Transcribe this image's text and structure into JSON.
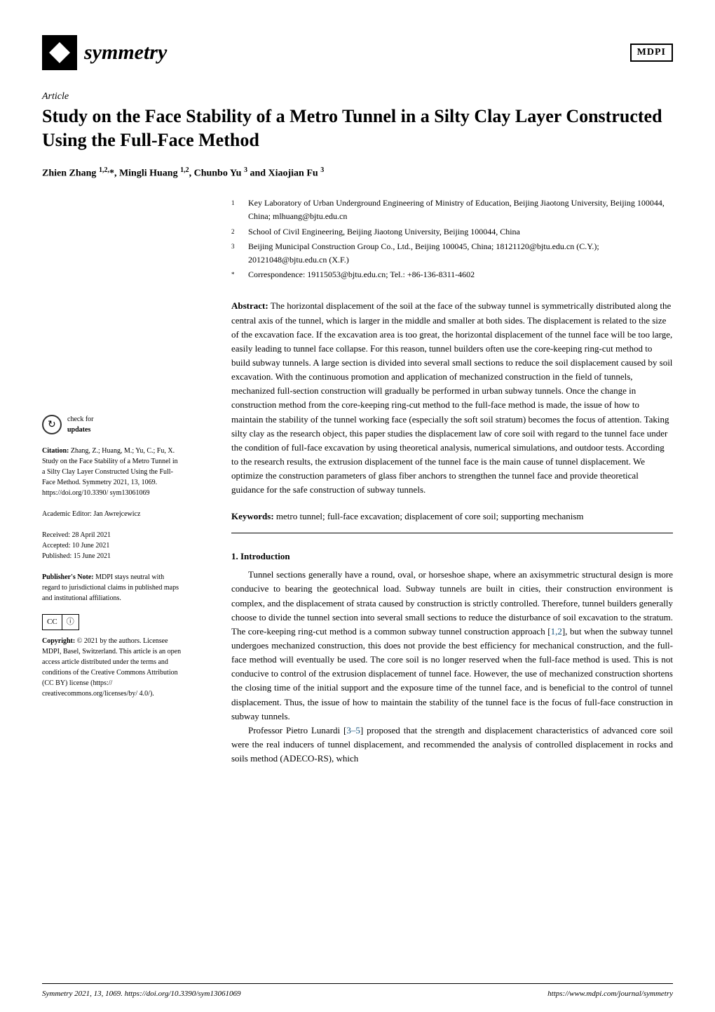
{
  "header": {
    "journal_name": "symmetry",
    "publisher_logo": "MDPI"
  },
  "article_type": "Article",
  "title": "Study on the Face Stability of a Metro Tunnel in a Silty Clay Layer Constructed Using the Full-Face Method",
  "authors": "Zhien Zhang 1,2,*, Mingli Huang 1,2, Chunbo Yu 3 and Xiaojian Fu 3",
  "affiliations": [
    {
      "num": "1",
      "text": "Key Laboratory of Urban Underground Engineering of Ministry of Education, Beijing Jiaotong University, Beijing 100044, China; mlhuang@bjtu.edu.cn"
    },
    {
      "num": "2",
      "text": "School of Civil Engineering, Beijing Jiaotong University, Beijing 100044, China"
    },
    {
      "num": "3",
      "text": "Beijing Municipal Construction Group Co., Ltd., Beijing 100045, China; 18121120@bjtu.edu.cn (C.Y.); 20121048@bjtu.edu.cn (X.F.)"
    },
    {
      "num": "*",
      "text": "Correspondence: 19115053@bjtu.edu.cn; Tel.: +86-136-8311-4602"
    }
  ],
  "abstract": {
    "label": "Abstract:",
    "text": "The horizontal displacement of the soil at the face of the subway tunnel is symmetrically distributed along the central axis of the tunnel, which is larger in the middle and smaller at both sides. The displacement is related to the size of the excavation face. If the excavation area is too great, the horizontal displacement of the tunnel face will be too large, easily leading to tunnel face collapse. For this reason, tunnel builders often use the core-keeping ring-cut method to build subway tunnels. A large section is divided into several small sections to reduce the soil displacement caused by soil excavation. With the continuous promotion and application of mechanized construction in the field of tunnels, mechanized full-section construction will gradually be performed in urban subway tunnels. Once the change in construction method from the core-keeping ring-cut method to the full-face method is made, the issue of how to maintain the stability of the tunnel working face (especially the soft soil stratum) becomes the focus of attention. Taking silty clay as the research object, this paper studies the displacement law of core soil with regard to the tunnel face under the condition of full-face excavation by using theoretical analysis, numerical simulations, and outdoor tests. According to the research results, the extrusion displacement of the tunnel face is the main cause of tunnel displacement. We optimize the construction parameters of glass fiber anchors to strengthen the tunnel face and provide theoretical guidance for the safe construction of subway tunnels."
  },
  "keywords": {
    "label": "Keywords:",
    "text": "metro tunnel; full-face excavation; displacement of core soil; supporting mechanism"
  },
  "section1": {
    "heading": "1. Introduction",
    "para1a": "Tunnel sections generally have a round, oval, or horseshoe shape, where an axisymmetric structural design is more conducive to bearing the geotechnical load. Subway tunnels are built in cities, their construction environment is complex, and the displacement of strata caused by construction is strictly controlled. Therefore, tunnel builders generally choose to divide the tunnel section into several small sections to reduce the disturbance of soil excavation to the stratum. The core-keeping ring-cut method is a common subway tunnel construction approach [",
    "ref12": "1,2",
    "para1b": "], but when the subway tunnel undergoes mechanized construction, this does not provide the best efficiency for mechanical construction, and the full-face method will eventually be used. The core soil is no longer reserved when the full-face method is used. This is not conducive to control of the extrusion displacement of tunnel face. However, the use of mechanized construction shortens the closing time of the initial support and the exposure time of the tunnel face, and is beneficial to the control of tunnel displacement. Thus, the issue of how to maintain the stability of the tunnel face is the focus of full-face construction in subway tunnels.",
    "para2a": "Professor Pietro Lunardi [",
    "ref35": "3–5",
    "para2b": "] proposed that the strength and displacement characteristics of advanced core soil were the real inducers of tunnel displacement, and recommended the analysis of controlled displacement in rocks and soils method (ADECO-RS), which"
  },
  "sidebar": {
    "check_updates": "check for updates",
    "citation_label": "Citation:",
    "citation": "Zhang, Z.; Huang, M.; Yu, C.; Fu, X. Study on the Face Stability of a Metro Tunnel in a Silty Clay Layer Constructed Using the Full-Face Method. Symmetry 2021, 13, 1069. https://doi.org/10.3390/ sym13061069",
    "editor_label": "Academic Editor:",
    "editor": "Jan Awrejcewicz",
    "received": "Received: 28 April 2021",
    "accepted": "Accepted: 10 June 2021",
    "published": "Published: 15 June 2021",
    "pubnote_label": "Publisher's Note:",
    "pubnote": "MDPI stays neutral with regard to jurisdictional claims in published maps and institutional affiliations.",
    "cc_label": "CC",
    "cc_by": "BY",
    "copyright_label": "Copyright:",
    "copyright": "© 2021 by the authors. Licensee MDPI, Basel, Switzerland. This article is an open access article distributed under the terms and conditions of the Creative Commons Attribution (CC BY) license (https:// creativecommons.org/licenses/by/ 4.0/)."
  },
  "footer": {
    "left": "Symmetry 2021, 13, 1069. https://doi.org/10.3390/sym13061069",
    "right": "https://www.mdpi.com/journal/symmetry"
  },
  "colors": {
    "text": "#000000",
    "background": "#ffffff",
    "link": "#15537d"
  }
}
